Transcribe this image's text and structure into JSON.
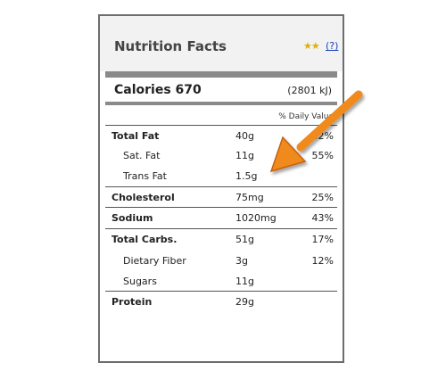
{
  "header": {
    "title": "Nutrition Facts",
    "rating_icon": "star-pair-icon",
    "help_link": "(?)"
  },
  "calories": {
    "label": "Calories 670",
    "kj": "(2801 kJ)"
  },
  "daily_value_header": "% Daily Value",
  "rows": [
    {
      "name": "Total Fat",
      "amount": "40g",
      "pct": "62%",
      "style": "bold"
    },
    {
      "name": "Sat. Fat",
      "amount": "11g",
      "pct": "55%",
      "style": "sub"
    },
    {
      "name": "Trans Fat",
      "amount": "1.5g",
      "pct": "",
      "style": "sub"
    },
    {
      "name": "Cholesterol",
      "amount": "75mg",
      "pct": "25%",
      "style": "bold"
    },
    {
      "name": "Sodium",
      "amount": "1020mg",
      "pct": "43%",
      "style": "bold"
    },
    {
      "name": "Total Carbs.",
      "amount": "51g",
      "pct": "17%",
      "style": "bold"
    },
    {
      "name": "Dietary Fiber",
      "amount": "3g",
      "pct": "12%",
      "style": "sub"
    },
    {
      "name": "Sugars",
      "amount": "11g",
      "pct": "",
      "style": "sub"
    },
    {
      "name": "Protein",
      "amount": "29g",
      "pct": "",
      "style": "bold"
    }
  ],
  "annotation": {
    "icon": "orange-arrow-icon",
    "color": "#f08a1c"
  }
}
